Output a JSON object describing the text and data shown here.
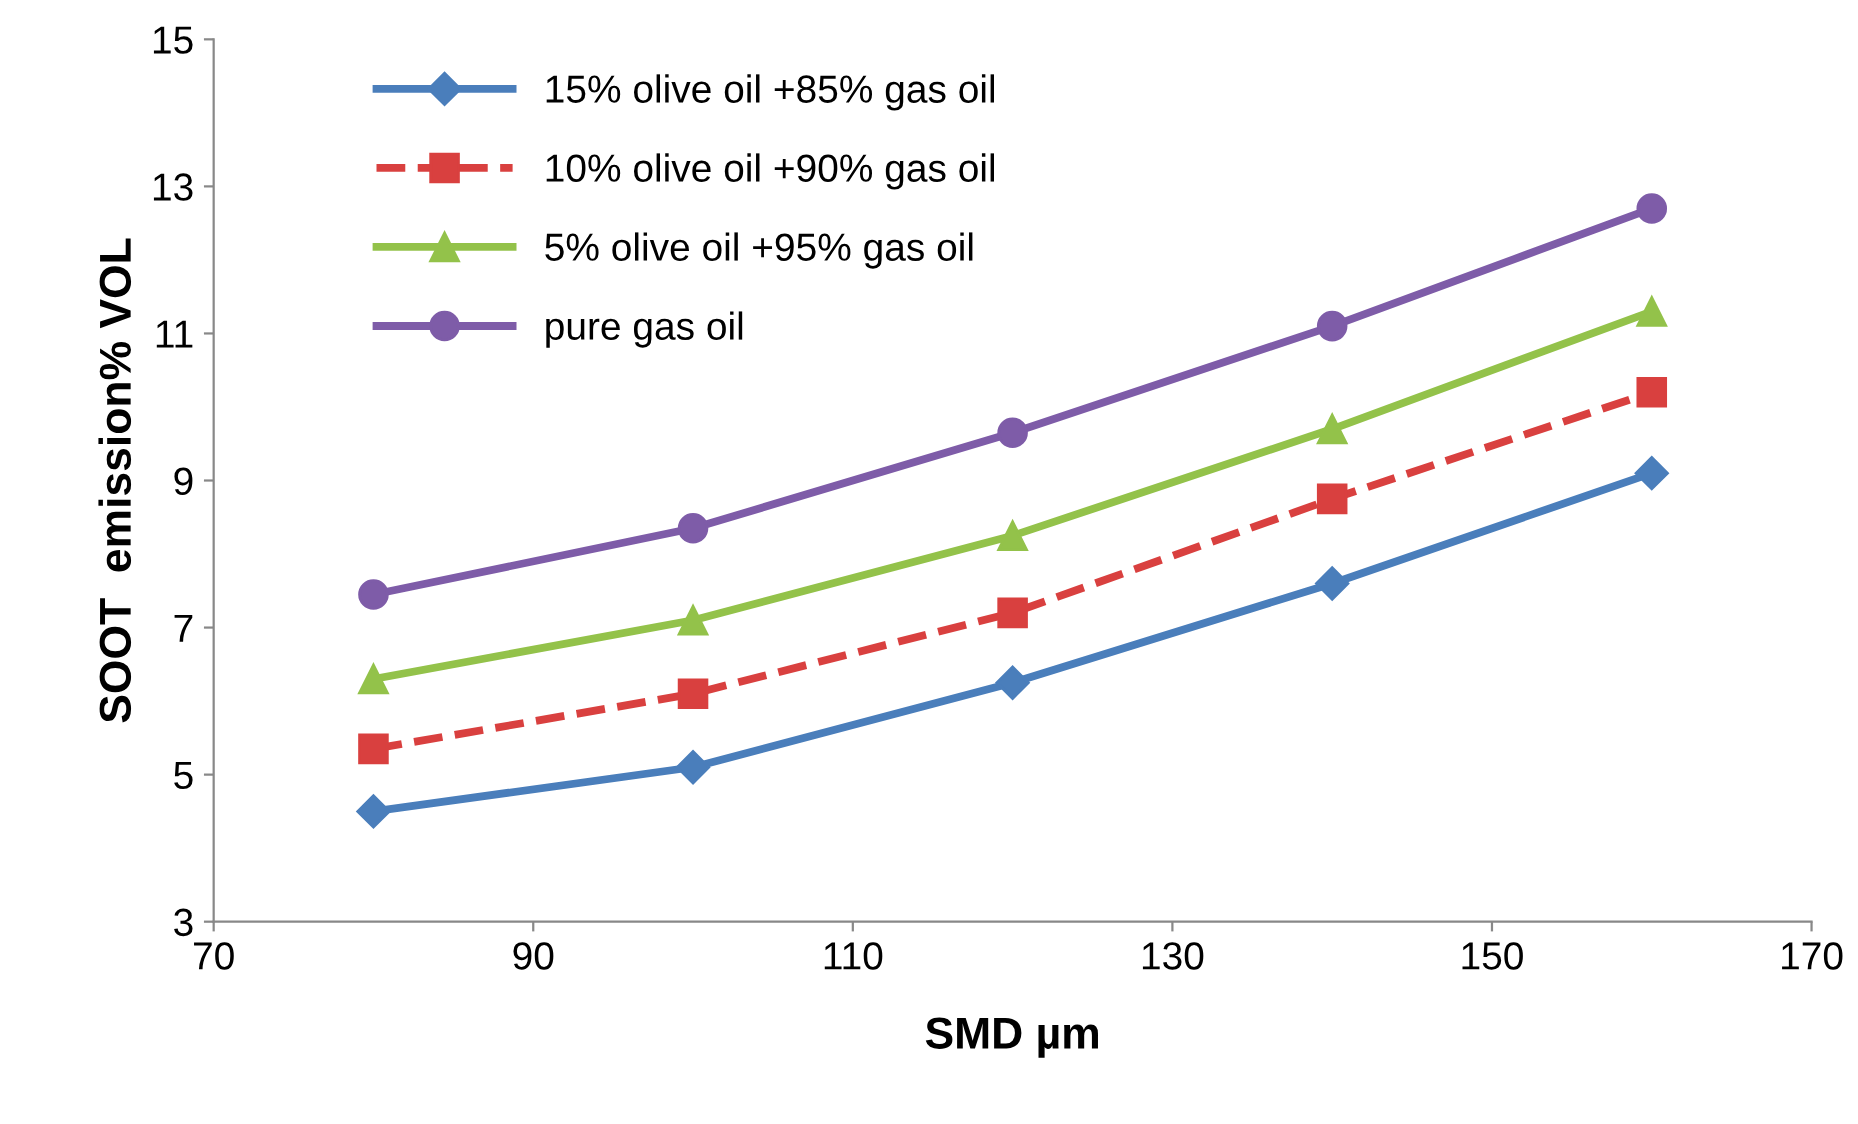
{
  "chart_data": {
    "type": "line",
    "xlabel": "SMD µm",
    "ylabel": "SOOT  emission% VOL",
    "x": [
      80,
      100,
      120,
      140,
      160
    ],
    "series": [
      {
        "name": "15% olive oil +85% gas oil",
        "color": "#4a7ebb",
        "values": [
          4.5,
          5.1,
          6.25,
          7.6,
          9.1
        ],
        "marker": "diamond",
        "line_style": "solid"
      },
      {
        "name": "10% olive oil +90% gas oil",
        "color": "#d9403f",
        "values": [
          5.35,
          6.1,
          7.2,
          8.75,
          10.2
        ],
        "marker": "square",
        "line_style": "dashed"
      },
      {
        "name": "5% olive oil +95% gas oil",
        "color": "#93c24a",
        "values": [
          6.3,
          7.1,
          8.25,
          9.7,
          11.3
        ],
        "marker": "triangle",
        "line_style": "solid"
      },
      {
        "name": "pure gas oil",
        "color": "#7e5ca8",
        "values": [
          7.45,
          8.35,
          9.65,
          11.1,
          12.7
        ],
        "marker": "circle",
        "line_style": "solid"
      }
    ],
    "xlim": [
      70,
      170
    ],
    "xticks": [
      70,
      90,
      110,
      130,
      150,
      170
    ],
    "ylim": [
      3,
      15
    ],
    "yticks": [
      3,
      5,
      7,
      9,
      11,
      13,
      15
    ],
    "grid": false,
    "legend": "top left"
  }
}
